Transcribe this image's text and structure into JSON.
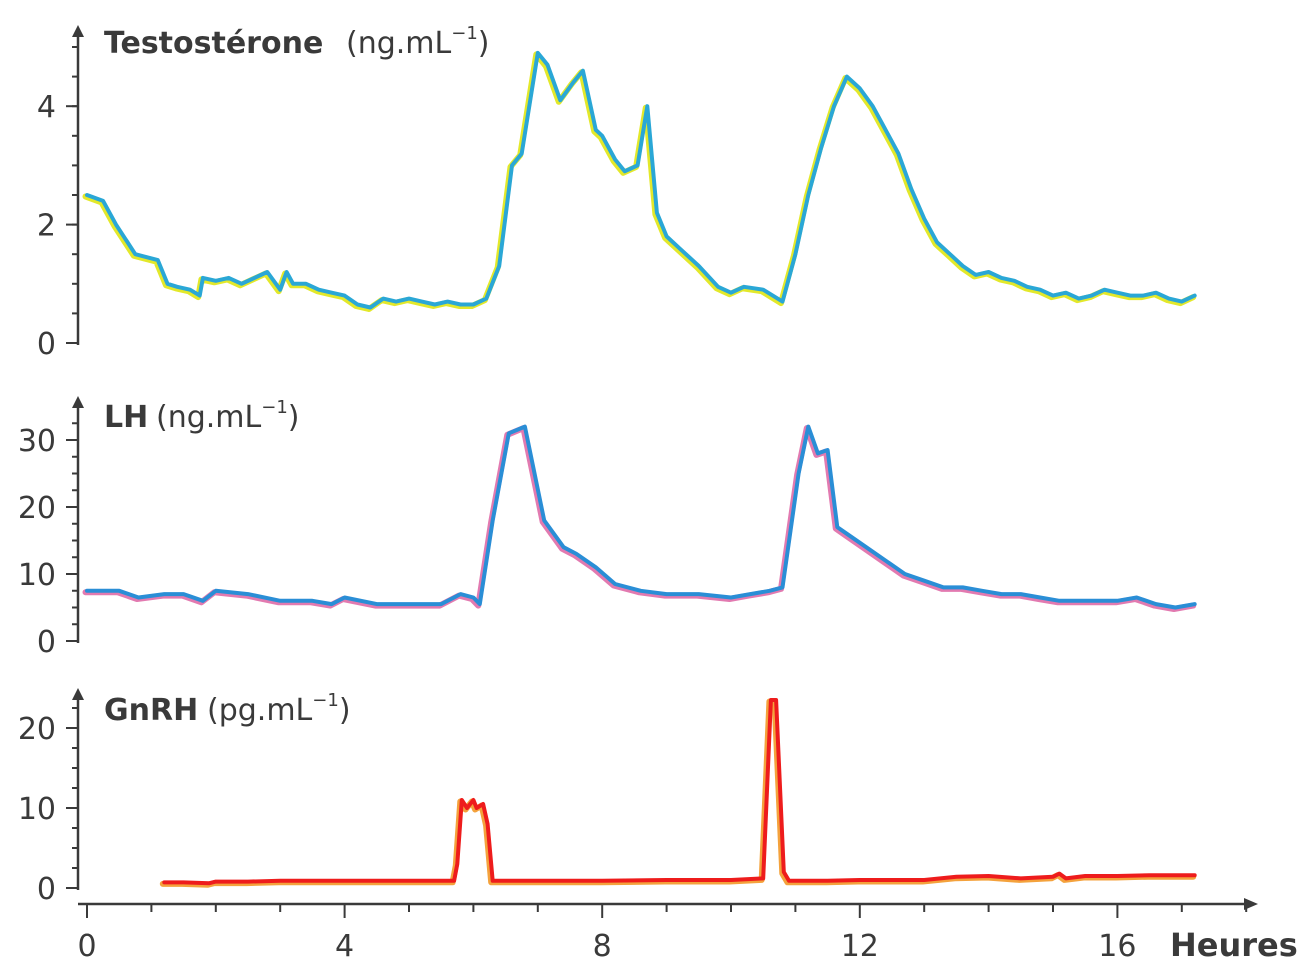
{
  "chart_data": [
    {
      "type": "line",
      "title": "Testostérone",
      "unit_prefix": "(ng.mL",
      "unit_exp": "−1",
      "unit_suffix": ")",
      "ylim": [
        0,
        5
      ],
      "yticks": [
        0,
        2,
        4
      ],
      "ytick_labels": [
        "0",
        "2",
        "4"
      ],
      "colors": {
        "main": "#2aa7d6",
        "halo": "#e3e82a"
      },
      "series": [
        {
          "x": [
            0,
            0.25,
            0.45,
            0.75,
            1.1,
            1.25,
            1.4,
            1.6,
            1.75,
            1.8,
            2.0,
            2.2,
            2.4,
            2.6,
            2.8,
            3.0,
            3.1,
            3.2,
            3.4,
            3.6,
            3.8,
            4.0,
            4.2,
            4.4,
            4.6,
            4.8,
            5.0,
            5.2,
            5.4,
            5.6,
            5.8,
            6.0,
            6.2,
            6.4,
            6.6,
            6.75,
            7.0,
            7.15,
            7.35,
            7.55,
            7.7,
            7.9,
            8.0,
            8.2,
            8.35,
            8.55,
            8.7,
            8.85,
            9.0,
            9.2,
            9.5,
            9.8,
            10.0,
            10.2,
            10.5,
            10.8,
            11.0,
            11.2,
            11.4,
            11.6,
            11.8,
            12.0,
            12.2,
            12.4,
            12.6,
            12.8,
            13.0,
            13.2,
            13.4,
            13.6,
            13.8,
            14.0,
            14.2,
            14.4,
            14.6,
            14.8,
            15.0,
            15.2,
            15.4,
            15.6,
            15.8,
            16.0,
            16.2,
            16.4,
            16.6,
            16.8,
            17.0,
            17.2
          ],
          "y": [
            2.5,
            2.4,
            2.0,
            1.5,
            1.4,
            1.0,
            0.95,
            0.9,
            0.8,
            1.1,
            1.05,
            1.1,
            1.0,
            1.1,
            1.2,
            0.9,
            1.2,
            1.0,
            1.0,
            0.9,
            0.85,
            0.8,
            0.65,
            0.6,
            0.75,
            0.7,
            0.75,
            0.7,
            0.65,
            0.7,
            0.65,
            0.65,
            0.75,
            1.3,
            3.0,
            3.2,
            4.9,
            4.7,
            4.1,
            4.4,
            4.6,
            3.6,
            3.5,
            3.1,
            2.9,
            3.0,
            4.0,
            2.2,
            1.8,
            1.6,
            1.3,
            0.95,
            0.85,
            0.95,
            0.9,
            0.7,
            1.5,
            2.5,
            3.3,
            4.0,
            4.5,
            4.3,
            4.0,
            3.6,
            3.2,
            2.6,
            2.1,
            1.7,
            1.5,
            1.3,
            1.15,
            1.2,
            1.1,
            1.05,
            0.95,
            0.9,
            0.8,
            0.85,
            0.75,
            0.8,
            0.9,
            0.85,
            0.8,
            0.8,
            0.85,
            0.75,
            0.7,
            0.8
          ]
        }
      ]
    },
    {
      "type": "line",
      "title": "LH",
      "unit_prefix": "(ng.mL",
      "unit_exp": "−1",
      "unit_suffix": ")",
      "ylim": [
        0,
        33
      ],
      "yticks": [
        0,
        10,
        20,
        30
      ],
      "ytick_labels": [
        "0",
        "10",
        "20",
        "30"
      ],
      "colors": {
        "main": "#2a8ed6",
        "halo": "#e27ab0"
      },
      "series": [
        {
          "x": [
            0,
            0.5,
            0.8,
            1.2,
            1.5,
            1.8,
            2.0,
            2.5,
            3.0,
            3.5,
            3.8,
            4.0,
            4.5,
            5.0,
            5.5,
            5.8,
            6.0,
            6.1,
            6.3,
            6.55,
            6.8,
            7.1,
            7.4,
            7.6,
            7.9,
            8.2,
            8.6,
            9.0,
            9.5,
            10.0,
            10.3,
            10.6,
            10.8,
            11.05,
            11.2,
            11.35,
            11.5,
            11.65,
            11.8,
            12.1,
            12.4,
            12.7,
            13.0,
            13.3,
            13.6,
            13.9,
            14.2,
            14.5,
            14.8,
            15.1,
            15.4,
            15.7,
            16.0,
            16.3,
            16.6,
            16.9,
            17.2
          ],
          "y": [
            7.5,
            7.5,
            6.5,
            7.0,
            7.0,
            6.0,
            7.5,
            7.0,
            6.0,
            6.0,
            5.5,
            6.5,
            5.5,
            5.5,
            5.5,
            7.0,
            6.5,
            5.5,
            18.0,
            31.0,
            32.0,
            18.0,
            14.0,
            13.0,
            11.0,
            8.5,
            7.5,
            7.0,
            7.0,
            6.5,
            7.0,
            7.5,
            8.0,
            25.0,
            32.0,
            28.0,
            28.5,
            17.0,
            16.0,
            14.0,
            12.0,
            10.0,
            9.0,
            8.0,
            8.0,
            7.5,
            7.0,
            7.0,
            6.5,
            6.0,
            6.0,
            6.0,
            6.0,
            6.5,
            5.5,
            5.0,
            5.5
          ]
        }
      ]
    },
    {
      "type": "line",
      "title": "GnRH",
      "unit_prefix": "(pg.mL",
      "unit_exp": "−1",
      "unit_suffix": ")",
      "ylim": [
        0,
        25
      ],
      "yticks": [
        0,
        10,
        20
      ],
      "ytick_labels": [
        "0",
        "10",
        "20"
      ],
      "colors": {
        "main": "#ee1c1c",
        "halo": "#f4a23c"
      },
      "series": [
        {
          "x": [
            1.2,
            1.5,
            1.9,
            2.0,
            2.5,
            3.0,
            4.0,
            5.0,
            5.7,
            5.75,
            5.82,
            5.9,
            6.0,
            6.05,
            6.15,
            6.22,
            6.3,
            6.5,
            7.0,
            8.0,
            9.0,
            10.0,
            10.5,
            10.62,
            10.7,
            10.82,
            10.9,
            11.0,
            11.5,
            12.0,
            13.0,
            13.5,
            14.0,
            14.5,
            15.0,
            15.1,
            15.2,
            15.5,
            16.0,
            16.5,
            17.0,
            17.2
          ],
          "y": [
            0.7,
            0.7,
            0.6,
            0.8,
            0.8,
            0.9,
            0.9,
            0.9,
            0.9,
            3.0,
            11.0,
            10.0,
            11.0,
            10.0,
            10.5,
            8.0,
            0.9,
            0.9,
            0.9,
            0.9,
            1.0,
            1.0,
            1.2,
            23.5,
            23.5,
            2.0,
            0.9,
            0.9,
            0.9,
            1.0,
            1.0,
            1.4,
            1.5,
            1.2,
            1.4,
            1.8,
            1.2,
            1.5,
            1.5,
            1.6,
            1.6,
            1.6
          ]
        }
      ]
    }
  ],
  "x_axis": {
    "label": "Heures",
    "range": [
      0,
      18
    ],
    "ticks": [
      0,
      4,
      8,
      12,
      16
    ],
    "tick_labels": [
      "0",
      "4",
      "8",
      "12",
      "16"
    ],
    "minor_step": 1
  }
}
